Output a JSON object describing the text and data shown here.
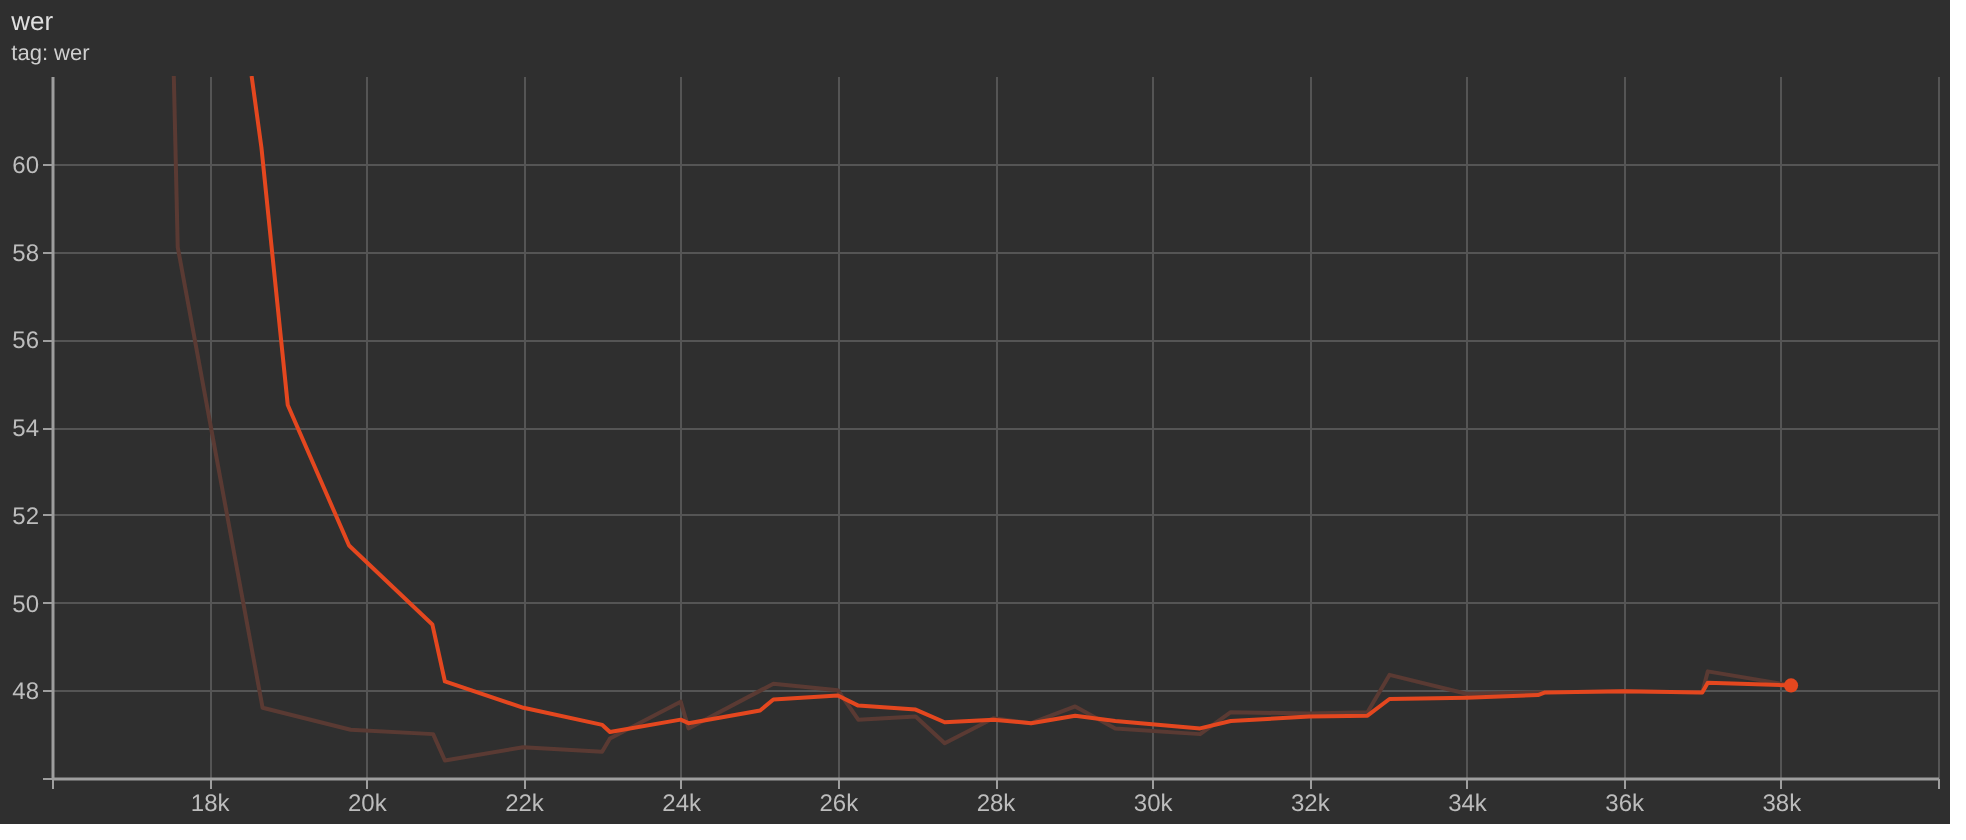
{
  "chart_data": {
    "type": "line",
    "title": "wer",
    "subtitle": "tag: wer",
    "xlim": [
      16000,
      40000
    ],
    "xticks": [
      {
        "value": 16000,
        "label": null
      },
      {
        "value": 18000,
        "label": "18k"
      },
      {
        "value": 20000,
        "label": "20k"
      },
      {
        "value": 22000,
        "label": "22k"
      },
      {
        "value": 24000,
        "label": "24k"
      },
      {
        "value": 26000,
        "label": "26k"
      },
      {
        "value": 28000,
        "label": "28k"
      },
      {
        "value": 30000,
        "label": "30k"
      },
      {
        "value": 32000,
        "label": "32k"
      },
      {
        "value": 34000,
        "label": "34k"
      },
      {
        "value": 36000,
        "label": "36k"
      },
      {
        "value": 38000,
        "label": "38k"
      },
      {
        "value": 40000,
        "label": null
      }
    ],
    "ylim": [
      46,
      62
    ],
    "yticks": [
      {
        "value": 46,
        "label": null
      },
      48,
      50,
      52,
      54,
      56,
      58,
      60
    ],
    "grid": true,
    "series": [
      {
        "color": "#5a3a33",
        "x": [
          17550,
          17600,
          18680,
          19800,
          20850,
          21000,
          21995,
          23000,
          23100,
          24000,
          24100,
          25180,
          26000,
          26260,
          26990,
          27360,
          27980,
          28460,
          29020,
          29530,
          30610,
          31000,
          32000,
          32740,
          33020,
          34000,
          34910,
          36000,
          37000,
          37070,
          38130
        ],
        "values": [
          62,
          58.1,
          47.6,
          47.1,
          47.0,
          46.4,
          46.7,
          46.6,
          46.9,
          47.74,
          47.13,
          48.15,
          48.0,
          47.33,
          47.4,
          46.79,
          47.36,
          47.25,
          47.63,
          47.13,
          47.0,
          47.5,
          47.47,
          47.5,
          48.35,
          47.92,
          47.95,
          47.98,
          47.95,
          48.43,
          48.11
        ]
      },
      {
        "color": "#e4471f",
        "x": [
          18540,
          18665,
          19000,
          19780,
          20840,
          21000,
          22000,
          23003,
          23100,
          24000,
          24100,
          25011,
          25180,
          26000,
          26260,
          26990,
          27360,
          27980,
          28460,
          29020,
          29530,
          30610,
          31000,
          32000,
          32740,
          33020,
          34000,
          34910,
          35000,
          36000,
          37000,
          37070,
          38130
        ],
        "values": [
          62,
          60.37,
          54.5,
          51.3,
          49.5,
          48.2,
          47.6,
          47.21,
          47.05,
          47.33,
          47.25,
          47.54,
          47.79,
          47.88,
          47.65,
          47.56,
          47.27,
          47.33,
          47.25,
          47.42,
          47.3,
          47.13,
          47.3,
          47.4,
          47.42,
          47.8,
          47.83,
          47.89,
          47.95,
          47.98,
          47.95,
          48.17,
          48.11
        ]
      },
      {
        "type": "scatter",
        "color": "#e4471f",
        "x": [
          38130
        ],
        "values": [
          48.11
        ]
      }
    ]
  }
}
